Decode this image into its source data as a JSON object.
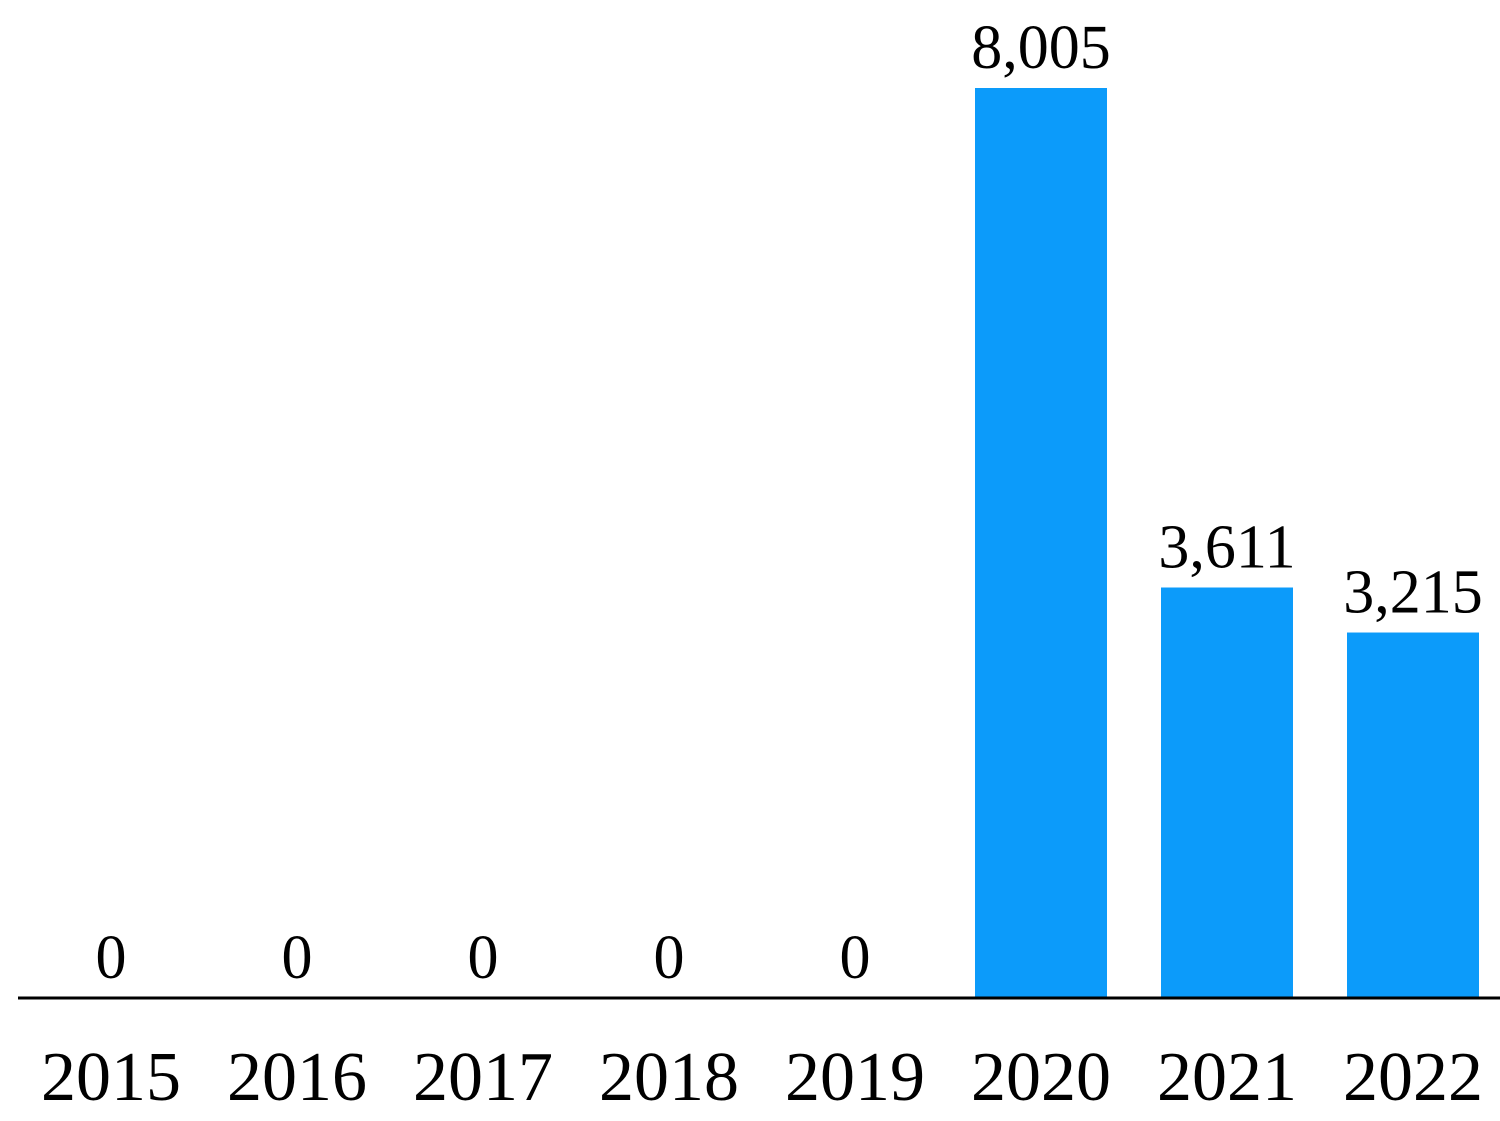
{
  "chart_data": {
    "type": "bar",
    "categories": [
      "2015",
      "2016",
      "2017",
      "2018",
      "2019",
      "2020",
      "2021",
      "2022"
    ],
    "values": [
      0,
      0,
      0,
      0,
      0,
      8005,
      3611,
      3215
    ],
    "value_labels": [
      "0",
      "0",
      "0",
      "0",
      "0",
      "8,005",
      "3,611",
      "3,215"
    ],
    "ylim": [
      0,
      8005
    ],
    "colors": {
      "bar": "#0c9bfa",
      "axis": "#000000",
      "text": "#000000"
    },
    "grid": false,
    "legend": "none"
  }
}
